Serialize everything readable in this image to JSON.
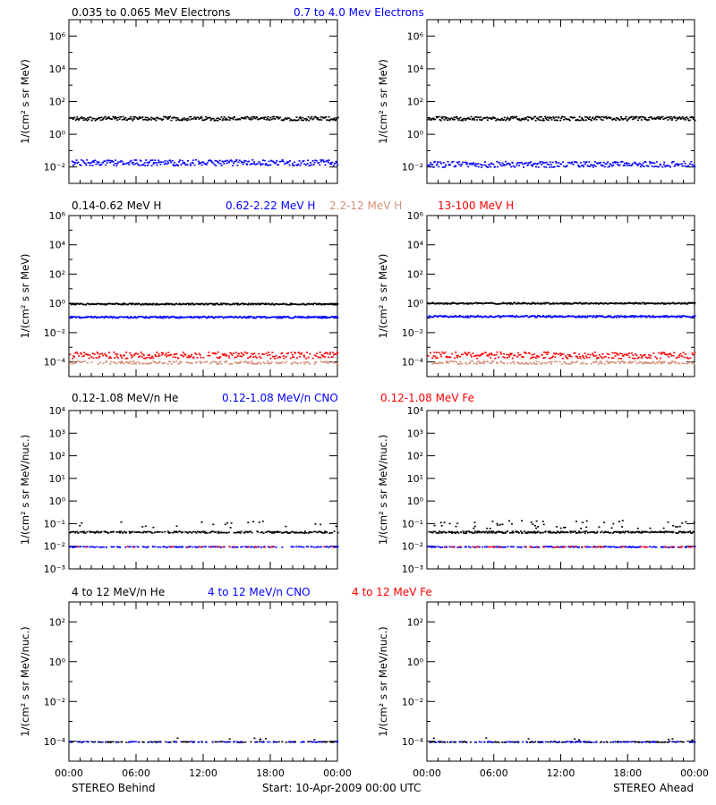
{
  "chart_data": [
    {
      "type": "scatter",
      "title_entries": [
        {
          "text": "0.035 to 0.065 MeV Electrons",
          "color": "#000000"
        },
        {
          "text": "0.7 to 4.0 Mev Electrons",
          "color": "#0000ff"
        }
      ],
      "ylabel": "1/(cm² s sr MeV)",
      "yscale": "log",
      "ylim_exp": [
        -3,
        7
      ],
      "ytick_exps": [
        -2,
        0,
        2,
        4,
        6
      ],
      "ytick_labels": [
        "10⁻²",
        "10⁰",
        "10²",
        "10⁴",
        "10⁶"
      ],
      "panels": [
        {
          "name": "STEREO Behind",
          "series": [
            {
              "color": "#000000",
              "level_exp": 1.0,
              "spread": 0.12,
              "density": 1.0
            },
            {
              "color": "#0000ff",
              "level_exp": -1.7,
              "spread": 0.18,
              "density": 0.95
            }
          ]
        },
        {
          "name": "STEREO Ahead",
          "series": [
            {
              "color": "#000000",
              "level_exp": 1.0,
              "spread": 0.12,
              "density": 1.0
            },
            {
              "color": "#0000ff",
              "level_exp": -1.8,
              "spread": 0.18,
              "density": 0.95
            }
          ]
        }
      ]
    },
    {
      "type": "scatter",
      "title_entries": [
        {
          "text": "0.14-0.62 MeV H",
          "color": "#000000"
        },
        {
          "text": "0.62-2.22 MeV H",
          "color": "#0000ff"
        },
        {
          "text": "2.2-12 MeV H",
          "color": "#d2917a"
        },
        {
          "text": "13-100 MeV H",
          "color": "#ff0000"
        }
      ],
      "ylabel": "1/(cm² s sr MeV)",
      "yscale": "log",
      "ylim_exp": [
        -5,
        6
      ],
      "ytick_exps": [
        -4,
        -2,
        0,
        2,
        4,
        6
      ],
      "ytick_labels": [
        "10⁻⁴",
        "10⁻²",
        "10⁰",
        "10²",
        "10⁴",
        "10⁶"
      ],
      "panels": [
        {
          "name": "STEREO Behind",
          "series": [
            {
              "color": "#000000",
              "level_exp": 0.0,
              "spread": 0.05,
              "density": 1.0
            },
            {
              "color": "#0000ff",
              "level_exp": -0.9,
              "spread": 0.06,
              "density": 1.0
            },
            {
              "color": "#ff0000",
              "level_exp": -3.5,
              "spread": 0.22,
              "density": 0.85
            },
            {
              "color": "#d2917a",
              "level_exp": -4.0,
              "spread": 0.1,
              "density": 0.6
            }
          ]
        },
        {
          "name": "STEREO Ahead",
          "series": [
            {
              "color": "#000000",
              "level_exp": 0.05,
              "spread": 0.05,
              "density": 1.0
            },
            {
              "color": "#0000ff",
              "level_exp": -0.85,
              "spread": 0.06,
              "density": 1.0
            },
            {
              "color": "#ff0000",
              "level_exp": -3.5,
              "spread": 0.22,
              "density": 0.85
            },
            {
              "color": "#d2917a",
              "level_exp": -4.0,
              "spread": 0.1,
              "density": 0.6
            }
          ]
        }
      ]
    },
    {
      "type": "scatter",
      "title_entries": [
        {
          "text": "0.12-1.08 MeV/n He",
          "color": "#000000"
        },
        {
          "text": "0.12-1.08 MeV/n CNO",
          "color": "#0000ff"
        },
        {
          "text": "0.12-1.08 MeV Fe",
          "color": "#ff0000"
        }
      ],
      "ylabel": "1/(cm² s sr MeV/nuc.)",
      "yscale": "log",
      "ylim_exp": [
        -3,
        4
      ],
      "ytick_exps": [
        -3,
        -2,
        -1,
        0,
        1,
        2,
        3,
        4
      ],
      "ytick_labels": [
        "10⁻³",
        "10⁻²",
        "10⁻¹",
        "10⁰",
        "10¹",
        "10²",
        "10³",
        "10⁴"
      ],
      "panels": [
        {
          "name": "STEREO Behind",
          "series": [
            {
              "color": "#000000",
              "level_exp": -1.35,
              "spread": 0.04,
              "density": 0.7
            },
            {
              "color": "#000000",
              "level_exp": -1.0,
              "spread": 0.15,
              "density": 0.08
            },
            {
              "color": "#0000ff",
              "level_exp": -2.0,
              "spread": 0.02,
              "density": 0.45
            },
            {
              "color": "#ff0000",
              "level_exp": -2.0,
              "spread": 0.02,
              "density": 0.12
            }
          ]
        },
        {
          "name": "STEREO Ahead",
          "series": [
            {
              "color": "#000000",
              "level_exp": -1.35,
              "spread": 0.04,
              "density": 0.85
            },
            {
              "color": "#000000",
              "level_exp": -1.0,
              "spread": 0.18,
              "density": 0.2
            },
            {
              "color": "#0000ff",
              "level_exp": -2.0,
              "spread": 0.02,
              "density": 0.6
            },
            {
              "color": "#ff0000",
              "level_exp": -2.0,
              "spread": 0.02,
              "density": 0.15
            }
          ]
        }
      ]
    },
    {
      "type": "scatter",
      "title_entries": [
        {
          "text": "4 to 12 MeV/n He",
          "color": "#000000"
        },
        {
          "text": "4 to 12 MeV/n CNO",
          "color": "#0000ff"
        },
        {
          "text": "4 to 12 MeV Fe",
          "color": "#ff0000"
        }
      ],
      "ylabel": "1/(cm² s sr MeV/nuc.)",
      "yscale": "log",
      "ylim_exp": [
        -5,
        3
      ],
      "ytick_exps": [
        -4,
        -2,
        0,
        2
      ],
      "ytick_labels": [
        "10⁻⁴",
        "10⁻²",
        "10⁰",
        "10²"
      ],
      "panels": [
        {
          "name": "STEREO Behind",
          "series": [
            {
              "color": "#000000",
              "level_exp": -4.0,
              "spread": 0.02,
              "density": 0.35
            },
            {
              "color": "#0000ff",
              "level_exp": -4.0,
              "spread": 0.02,
              "density": 0.25
            },
            {
              "color": "#000000",
              "level_exp": -3.85,
              "spread": 0.05,
              "density": 0.03
            }
          ]
        },
        {
          "name": "STEREO Ahead",
          "series": [
            {
              "color": "#000000",
              "level_exp": -4.0,
              "spread": 0.02,
              "density": 0.4
            },
            {
              "color": "#0000ff",
              "level_exp": -4.0,
              "spread": 0.02,
              "density": 0.2
            },
            {
              "color": "#000000",
              "level_exp": -3.85,
              "spread": 0.05,
              "density": 0.04
            }
          ]
        }
      ]
    }
  ],
  "x_axis": {
    "range_hours": [
      0,
      24
    ],
    "tick_hours": [
      0,
      6,
      12,
      18,
      24
    ],
    "tick_labels": [
      "00:00",
      "06:00",
      "12:00",
      "18:00",
      "00:00"
    ]
  },
  "footer": {
    "left": "STEREO Behind",
    "center": "Start: 10-Apr-2009 00:00 UTC",
    "right": "STEREO Ahead"
  }
}
